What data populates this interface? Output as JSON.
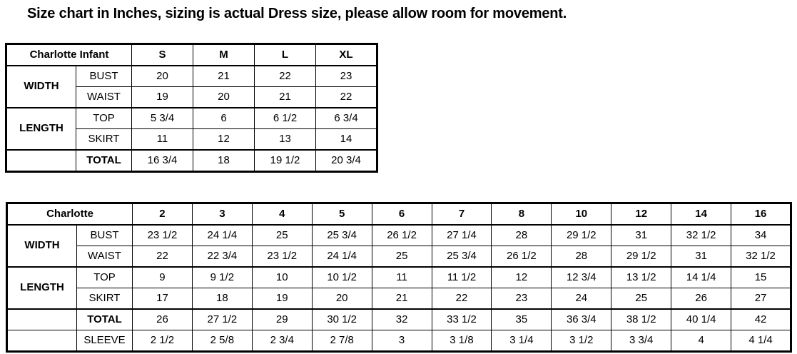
{
  "page_title": "Size chart in Inches, sizing is actual Dress size, please allow room for movement.",
  "tables": [
    {
      "id": "charlotte-infant",
      "header_label": "Charlotte Infant",
      "size_headers": [
        "S",
        "M",
        "L",
        "XL"
      ],
      "row_groups": [
        {
          "group_label": "WIDTH",
          "rows": [
            {
              "label": "BUST",
              "bold": false,
              "values": [
                "20",
                "21",
                "22",
                "23"
              ]
            },
            {
              "label": "WAIST",
              "bold": false,
              "values": [
                "19",
                "20",
                "21",
                "22"
              ]
            }
          ]
        },
        {
          "group_label": "LENGTH",
          "rows": [
            {
              "label": "TOP",
              "bold": false,
              "values": [
                "5 3/4",
                "6",
                "6 1/2",
                "6 3/4"
              ]
            },
            {
              "label": "SKIRT",
              "bold": false,
              "values": [
                "11",
                "12",
                "13",
                "14"
              ]
            }
          ]
        },
        {
          "group_label": "",
          "rows": [
            {
              "label": "TOTAL",
              "bold": true,
              "values": [
                "16 3/4",
                "18",
                "19 1/2",
                "20 3/4"
              ]
            }
          ]
        }
      ]
    },
    {
      "id": "charlotte",
      "header_label": "Charlotte",
      "size_headers": [
        "2",
        "3",
        "4",
        "5",
        "6",
        "7",
        "8",
        "10",
        "12",
        "14",
        "16"
      ],
      "row_groups": [
        {
          "group_label": "WIDTH",
          "rows": [
            {
              "label": "BUST",
              "bold": false,
              "values": [
                "23 1/2",
                "24 1/4",
                "25",
                "25 3/4",
                "26 1/2",
                "27 1/4",
                "28",
                "29 1/2",
                "31",
                "32 1/2",
                "34"
              ]
            },
            {
              "label": "WAIST",
              "bold": false,
              "values": [
                "22",
                "22 3/4",
                "23 1/2",
                "24 1/4",
                "25",
                "25 3/4",
                "26 1/2",
                "28",
                "29 1/2",
                "31",
                "32 1/2"
              ]
            }
          ]
        },
        {
          "group_label": "LENGTH",
          "rows": [
            {
              "label": "TOP",
              "bold": false,
              "values": [
                "9",
                "9 1/2",
                "10",
                "10 1/2",
                "11",
                "11 1/2",
                "12",
                "12 3/4",
                "13 1/2",
                "14 1/4",
                "15"
              ]
            },
            {
              "label": "SKIRT",
              "bold": false,
              "values": [
                "17",
                "18",
                "19",
                "20",
                "21",
                "22",
                "23",
                "24",
                "25",
                "26",
                "27"
              ]
            }
          ]
        },
        {
          "group_label": "",
          "rows": [
            {
              "label": "TOTAL",
              "bold": true,
              "values": [
                "26",
                "27 1/2",
                "29",
                "30 1/2",
                "32",
                "33 1/2",
                "35",
                "36 3/4",
                "38 1/2",
                "40 1/4",
                "42"
              ]
            },
            {
              "label": "SLEEVE",
              "bold": false,
              "values": [
                "2 1/2",
                "2 5/8",
                "2 3/4",
                "2 7/8",
                "3",
                "3 1/8",
                "3 1/4",
                "3 1/2",
                "3 3/4",
                "4",
                "4 1/4"
              ]
            }
          ]
        }
      ]
    }
  ],
  "layout_hints": {
    "border_color": "#000000",
    "background_color": "#ffffff",
    "text_color": "#000000"
  }
}
